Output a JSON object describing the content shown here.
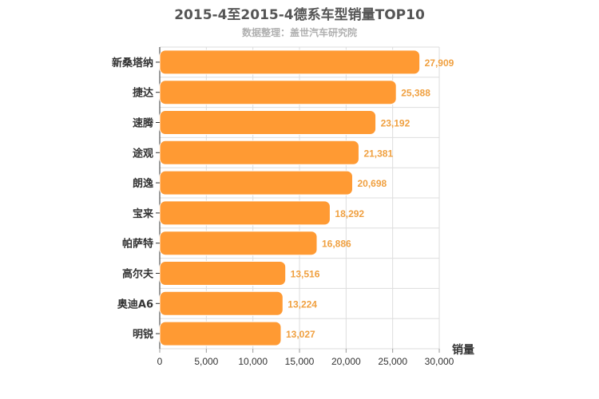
{
  "chart_data": {
    "type": "bar",
    "orientation": "horizontal",
    "title": "2015-4至2015-4德系车型销量TOP10",
    "subtitle": "数据整理：盖世汽车研究院",
    "xlabel": "销量",
    "categories": [
      "新桑塔纳",
      "捷达",
      "速腾",
      "途观",
      "朗逸",
      "宝来",
      "帕萨特",
      "高尔夫",
      "奥迪A6",
      "明锐"
    ],
    "values": [
      27909,
      25388,
      23192,
      21381,
      20698,
      18292,
      16886,
      13516,
      13224,
      13027
    ],
    "value_labels": [
      "27,909",
      "25,388",
      "23,192",
      "21,381",
      "20,698",
      "18,292",
      "16,886",
      "13,516",
      "13,224",
      "13,027"
    ],
    "xlim": [
      0,
      30000
    ],
    "xticks": [
      "0",
      "5,000",
      "10,000",
      "15,000",
      "20,000",
      "25,000",
      "30,000"
    ],
    "grid": true,
    "colors": {
      "bar": "#ff9a33",
      "bar_stroke": "#ffffff",
      "label": "#f0a040",
      "grid": "#dddddd",
      "axis": "#333333"
    }
  }
}
